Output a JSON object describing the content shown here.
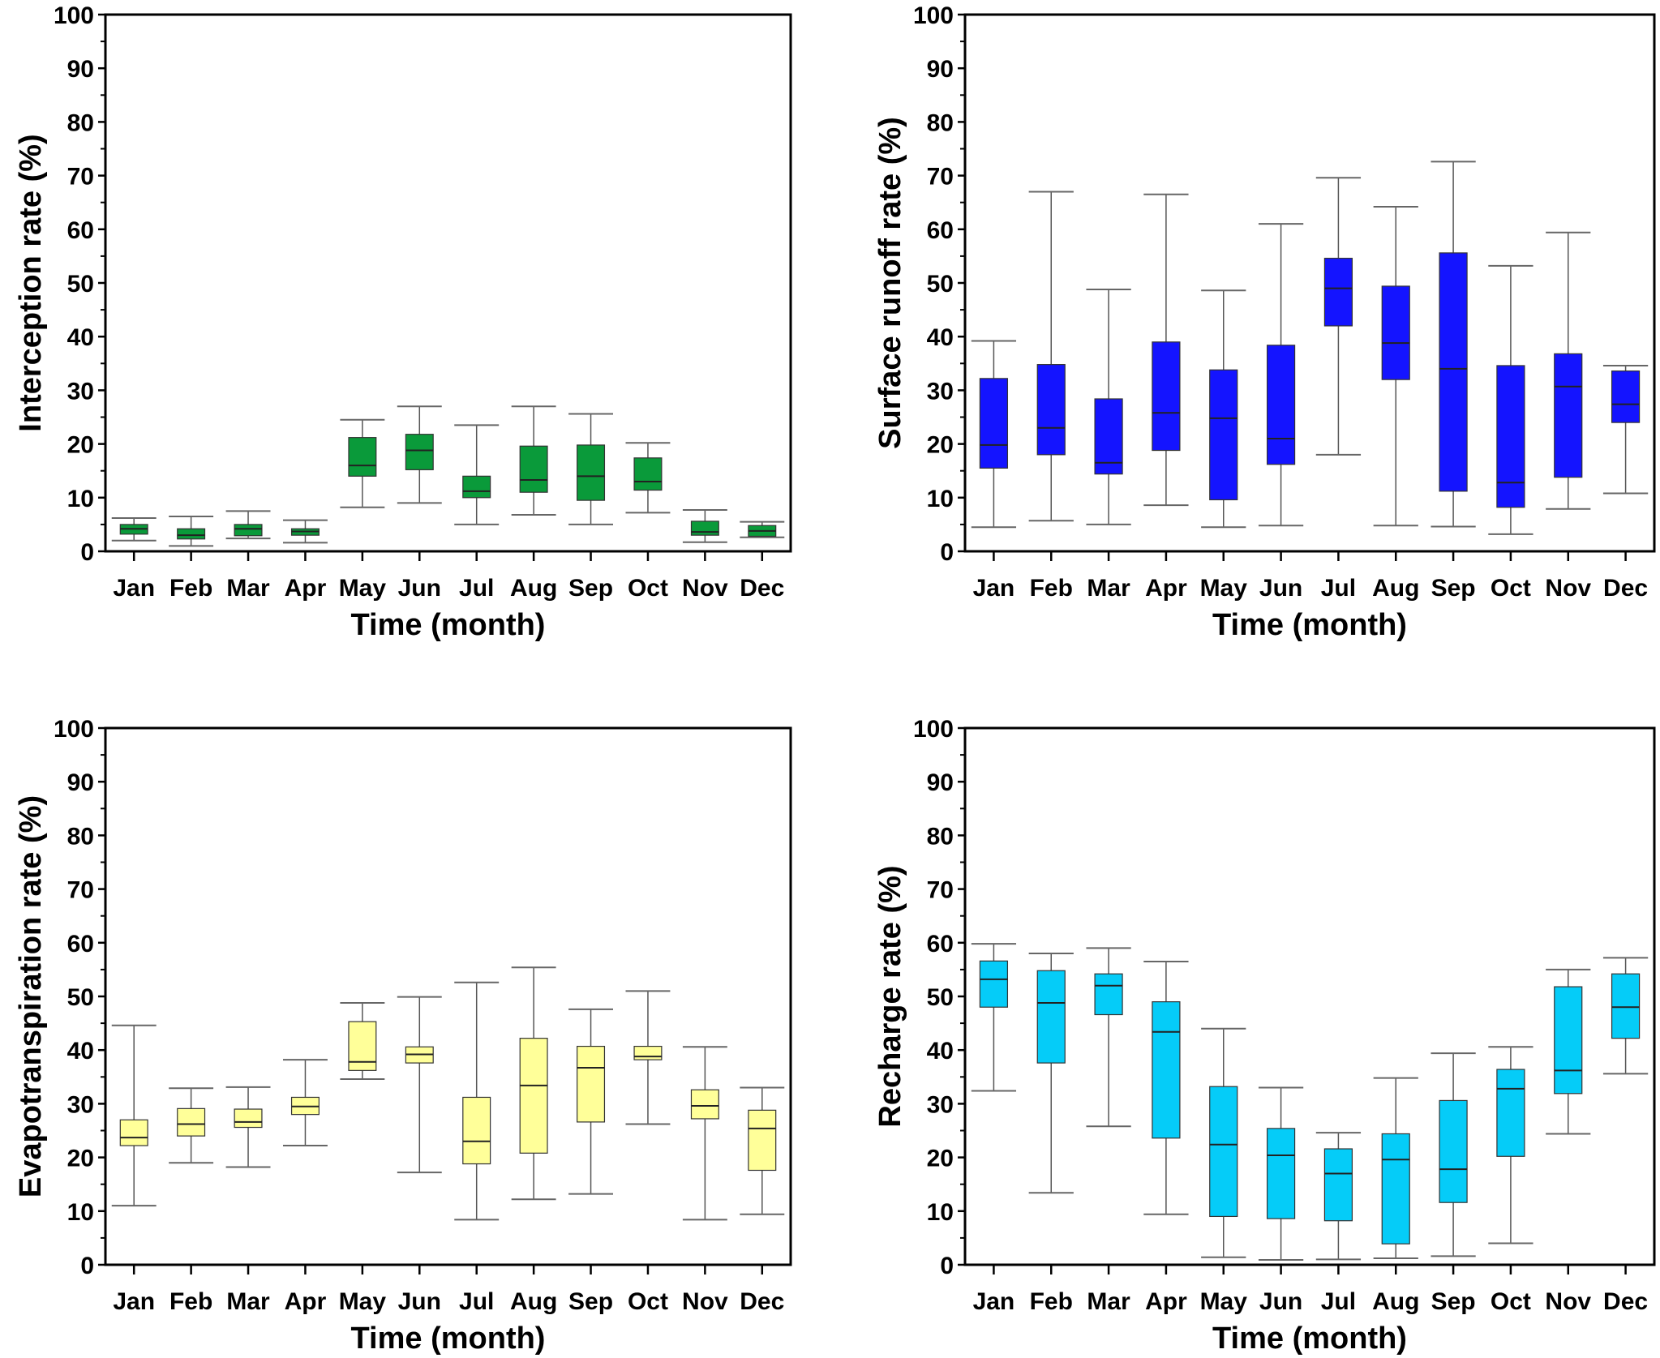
{
  "chart_data": [
    {
      "type": "boxplot",
      "id": "interception",
      "title": "",
      "xlabel": "Time (month)",
      "ylabel": "Interception rate (%)",
      "ylim": [
        0,
        100
      ],
      "yticks": [
        0,
        10,
        20,
        30,
        40,
        50,
        60,
        70,
        80,
        90,
        100
      ],
      "categories": [
        "Jan",
        "Feb",
        "Mar",
        "Apr",
        "May",
        "Jun",
        "Jul",
        "Aug",
        "Sep",
        "Oct",
        "Nov",
        "Dec"
      ],
      "color": "#0a9a3a",
      "series": [
        {
          "min": 2.0,
          "q1": 3.2,
          "median": 4.2,
          "q3": 5.0,
          "max": 6.2
        },
        {
          "min": 1.0,
          "q1": 2.3,
          "median": 3.0,
          "q3": 4.2,
          "max": 6.5
        },
        {
          "min": 2.4,
          "q1": 2.9,
          "median": 4.2,
          "q3": 5.0,
          "max": 7.5
        },
        {
          "min": 1.6,
          "q1": 3.0,
          "median": 3.7,
          "q3": 4.2,
          "max": 5.8
        },
        {
          "min": 8.2,
          "q1": 14.0,
          "median": 16.0,
          "q3": 21.2,
          "max": 24.5
        },
        {
          "min": 9.0,
          "q1": 15.2,
          "median": 18.8,
          "q3": 21.8,
          "max": 27.0
        },
        {
          "min": 5.0,
          "q1": 10.0,
          "median": 11.2,
          "q3": 14.0,
          "max": 23.5
        },
        {
          "min": 6.8,
          "q1": 11.0,
          "median": 13.3,
          "q3": 19.6,
          "max": 27.0
        },
        {
          "min": 5.0,
          "q1": 9.5,
          "median": 14.0,
          "q3": 19.8,
          "max": 25.6
        },
        {
          "min": 7.2,
          "q1": 11.4,
          "median": 13.0,
          "q3": 17.4,
          "max": 20.2
        },
        {
          "min": 1.7,
          "q1": 3.0,
          "median": 3.6,
          "q3": 5.6,
          "max": 7.7
        },
        {
          "min": 2.6,
          "q1": 2.8,
          "median": 3.8,
          "q3": 4.8,
          "max": 5.5
        }
      ]
    },
    {
      "type": "boxplot",
      "id": "surface-runoff",
      "title": "",
      "xlabel": "Time (month)",
      "ylabel": "Surface runoff rate (%)",
      "ylim": [
        0,
        100
      ],
      "yticks": [
        0,
        10,
        20,
        30,
        40,
        50,
        60,
        70,
        80,
        90,
        100
      ],
      "categories": [
        "Jan",
        "Feb",
        "Mar",
        "Apr",
        "May",
        "Jun",
        "Jul",
        "Aug",
        "Sep",
        "Oct",
        "Nov",
        "Dec"
      ],
      "color": "#1414ff",
      "series": [
        {
          "min": 4.5,
          "q1": 15.5,
          "median": 19.8,
          "q3": 32.2,
          "max": 39.2
        },
        {
          "min": 5.7,
          "q1": 18.0,
          "median": 23.0,
          "q3": 34.8,
          "max": 67.0
        },
        {
          "min": 5.0,
          "q1": 14.4,
          "median": 16.5,
          "q3": 28.4,
          "max": 48.8
        },
        {
          "min": 8.6,
          "q1": 18.8,
          "median": 25.8,
          "q3": 39.0,
          "max": 66.5
        },
        {
          "min": 4.5,
          "q1": 9.6,
          "median": 24.8,
          "q3": 33.8,
          "max": 48.6
        },
        {
          "min": 4.8,
          "q1": 16.2,
          "median": 21.0,
          "q3": 38.4,
          "max": 61.0
        },
        {
          "min": 18.0,
          "q1": 42.0,
          "median": 49.0,
          "q3": 54.6,
          "max": 69.6
        },
        {
          "min": 4.8,
          "q1": 32.0,
          "median": 38.8,
          "q3": 49.4,
          "max": 64.2
        },
        {
          "min": 4.6,
          "q1": 11.2,
          "median": 34.0,
          "q3": 55.6,
          "max": 72.6
        },
        {
          "min": 3.2,
          "q1": 8.2,
          "median": 12.8,
          "q3": 34.6,
          "max": 53.2
        },
        {
          "min": 7.9,
          "q1": 13.8,
          "median": 30.7,
          "q3": 36.8,
          "max": 59.4
        },
        {
          "min": 10.8,
          "q1": 24.0,
          "median": 27.4,
          "q3": 33.6,
          "max": 34.6
        }
      ]
    },
    {
      "type": "boxplot",
      "id": "evapotranspiration",
      "title": "",
      "xlabel": "Time (month)",
      "ylabel": "Evapotranspiration rate (%)",
      "ylim": [
        0,
        100
      ],
      "yticks": [
        0,
        10,
        20,
        30,
        40,
        50,
        60,
        70,
        80,
        90,
        100
      ],
      "categories": [
        "Jan",
        "Feb",
        "Mar",
        "Apr",
        "May",
        "Jun",
        "Jul",
        "Aug",
        "Sep",
        "Oct",
        "Nov",
        "Dec"
      ],
      "color": "#ffff99",
      "series": [
        {
          "min": 11.0,
          "q1": 22.2,
          "median": 23.7,
          "q3": 27.0,
          "max": 44.6
        },
        {
          "min": 19.0,
          "q1": 24.0,
          "median": 26.2,
          "q3": 29.1,
          "max": 32.9
        },
        {
          "min": 18.2,
          "q1": 25.6,
          "median": 26.6,
          "q3": 29.0,
          "max": 33.1
        },
        {
          "min": 22.2,
          "q1": 28.0,
          "median": 29.5,
          "q3": 31.2,
          "max": 38.2
        },
        {
          "min": 34.6,
          "q1": 36.2,
          "median": 37.8,
          "q3": 45.3,
          "max": 48.8
        },
        {
          "min": 17.2,
          "q1": 37.6,
          "median": 39.2,
          "q3": 40.6,
          "max": 49.9
        },
        {
          "min": 8.4,
          "q1": 18.8,
          "median": 23.0,
          "q3": 31.2,
          "max": 52.6
        },
        {
          "min": 12.2,
          "q1": 20.8,
          "median": 33.4,
          "q3": 42.2,
          "max": 55.4
        },
        {
          "min": 13.2,
          "q1": 26.6,
          "median": 36.7,
          "q3": 40.7,
          "max": 47.6
        },
        {
          "min": 26.2,
          "q1": 38.2,
          "median": 38.8,
          "q3": 40.7,
          "max": 51.0
        },
        {
          "min": 8.4,
          "q1": 27.2,
          "median": 29.6,
          "q3": 32.6,
          "max": 40.6
        },
        {
          "min": 9.4,
          "q1": 17.6,
          "median": 25.4,
          "q3": 28.8,
          "max": 33.0
        }
      ]
    },
    {
      "type": "boxplot",
      "id": "recharge",
      "title": "",
      "xlabel": "Time (month)",
      "ylabel": "Recharge rate (%)",
      "ylim": [
        0,
        100
      ],
      "yticks": [
        0,
        10,
        20,
        30,
        40,
        50,
        60,
        70,
        80,
        90,
        100
      ],
      "categories": [
        "Jan",
        "Feb",
        "Mar",
        "Apr",
        "May",
        "Jun",
        "Jul",
        "Aug",
        "Sep",
        "Oct",
        "Nov",
        "Dec"
      ],
      "color": "#05ccf8",
      "series": [
        {
          "min": 32.4,
          "q1": 48.0,
          "median": 53.2,
          "q3": 56.6,
          "max": 59.8
        },
        {
          "min": 13.4,
          "q1": 37.6,
          "median": 48.8,
          "q3": 54.8,
          "max": 58.0
        },
        {
          "min": 25.8,
          "q1": 46.6,
          "median": 52.0,
          "q3": 54.2,
          "max": 59.0
        },
        {
          "min": 9.4,
          "q1": 23.6,
          "median": 43.4,
          "q3": 49.0,
          "max": 56.5
        },
        {
          "min": 1.4,
          "q1": 9.0,
          "median": 22.4,
          "q3": 33.2,
          "max": 44.0
        },
        {
          "min": 0.9,
          "q1": 8.6,
          "median": 20.4,
          "q3": 25.4,
          "max": 33.0
        },
        {
          "min": 1.0,
          "q1": 8.2,
          "median": 17.0,
          "q3": 21.6,
          "max": 24.6
        },
        {
          "min": 1.2,
          "q1": 3.9,
          "median": 19.6,
          "q3": 24.4,
          "max": 34.8
        },
        {
          "min": 1.6,
          "q1": 11.6,
          "median": 17.8,
          "q3": 30.6,
          "max": 39.4
        },
        {
          "min": 4.0,
          "q1": 20.2,
          "median": 32.8,
          "q3": 36.4,
          "max": 40.6
        },
        {
          "min": 24.4,
          "q1": 31.9,
          "median": 36.2,
          "q3": 51.8,
          "max": 55.0
        },
        {
          "min": 35.6,
          "q1": 42.2,
          "median": 48.0,
          "q3": 54.2,
          "max": 57.2
        }
      ]
    }
  ]
}
